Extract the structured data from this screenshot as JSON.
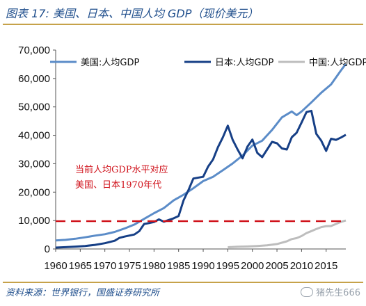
{
  "header": {
    "title": "图表 17: 美国、日本、中国人均 GDP（现价美元）"
  },
  "footer": {
    "source": "资料来源：世界银行，国盛证券研究所",
    "watermark": "猪先生666"
  },
  "chart_data": {
    "type": "line",
    "ylim": [
      0,
      70000
    ],
    "xlim": [
      1960,
      2019
    ],
    "yticks": [
      "0",
      "10,000",
      "20,000",
      "30,000",
      "40,000",
      "50,000",
      "60,000",
      "70,000"
    ],
    "ytick_values": [
      0,
      10000,
      20000,
      30000,
      40000,
      50000,
      60000,
      70000
    ],
    "xticks": [
      "1960",
      "1965",
      "1970",
      "1975",
      "1980",
      "1985",
      "1990",
      "1995",
      "2000",
      "2005",
      "2010",
      "2015"
    ],
    "xtick_values": [
      1960,
      1965,
      1970,
      1975,
      1980,
      1985,
      1990,
      1995,
      2000,
      2005,
      2010,
      2015
    ],
    "legend_position": "top",
    "series": [
      {
        "name": "美国:人均GDP",
        "color": "#5b8cc8",
        "x": [
          1960,
          1962,
          1964,
          1966,
          1968,
          1970,
          1972,
          1974,
          1976,
          1978,
          1980,
          1982,
          1984,
          1986,
          1988,
          1990,
          1992,
          1994,
          1996,
          1998,
          2000,
          2002,
          2004,
          2006,
          2008,
          2009,
          2010,
          2012,
          2014,
          2016,
          2018,
          2019
        ],
        "values": [
          3000,
          3200,
          3600,
          4100,
          4700,
          5200,
          6000,
          7200,
          8600,
          10600,
          12600,
          14400,
          17100,
          19100,
          21400,
          23900,
          25400,
          27700,
          30100,
          32900,
          36400,
          38100,
          41900,
          46300,
          48400,
          47100,
          48400,
          51600,
          55000,
          57900,
          62800,
          65100
        ]
      },
      {
        "name": "日本:人均GDP",
        "color": "#163f86",
        "x": [
          1960,
          1962,
          1964,
          1966,
          1968,
          1970,
          1972,
          1973,
          1974,
          1976,
          1977,
          1978,
          1979,
          1980,
          1981,
          1982,
          1983,
          1984,
          1985,
          1986,
          1987,
          1988,
          1990,
          1991,
          1992,
          1993,
          1994,
          1995,
          1996,
          1997,
          1998,
          1999,
          2000,
          2001,
          2002,
          2003,
          2004,
          2005,
          2006,
          2007,
          2008,
          2009,
          2010,
          2011,
          2012,
          2013,
          2014,
          2015,
          2016,
          2017,
          2018,
          2019
        ],
        "values": [
          480,
          630,
          840,
          1060,
          1450,
          2040,
          2900,
          3950,
          4350,
          5100,
          6300,
          8800,
          9100,
          9500,
          10400,
          9600,
          10200,
          10800,
          11600,
          17100,
          20700,
          24800,
          25400,
          29000,
          31500,
          35800,
          39300,
          43400,
          38400,
          35000,
          31900,
          36000,
          38500,
          33800,
          32300,
          35000,
          37700,
          37200,
          35400,
          35000,
          39300,
          40900,
          44500,
          48200,
          48600,
          40500,
          38100,
          34500,
          38800,
          38400,
          39200,
          40200
        ]
      },
      {
        "name": "中国:人均GDP",
        "color": "#bdbdbd",
        "x": [
          1995,
          1997,
          1999,
          2001,
          2003,
          2005,
          2007,
          2008,
          2009,
          2010,
          2011,
          2012,
          2013,
          2014,
          2015,
          2016,
          2017,
          2018,
          2019
        ],
        "values": [
          610,
          780,
          870,
          1050,
          1290,
          1750,
          2700,
          3470,
          3830,
          4550,
          5610,
          6300,
          7020,
          7680,
          8030,
          8080,
          8820,
          9530,
          10000
        ]
      },
      {
        "name": "当前人均GDP水平对应",
        "color": "#d0121b",
        "style": "dashed",
        "x": [
          1960,
          2019
        ],
        "values": [
          9800,
          9800
        ]
      }
    ],
    "annotations": [
      "当前人均GDP水平对应",
      "美国、日本1970年代"
    ]
  }
}
